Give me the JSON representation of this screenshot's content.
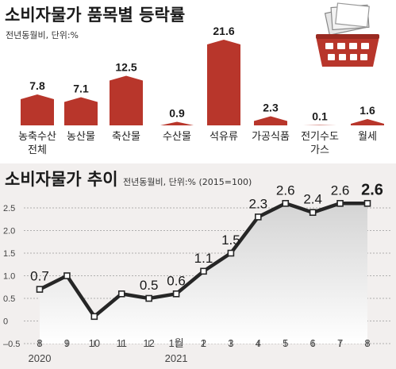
{
  "colors": {
    "bar": "#b8362b",
    "line": "#262626",
    "panel": "#f2efee",
    "area_top": "#d9d9d9",
    "grid": "#9a9a9a"
  },
  "icon": "shopping-basket-icon",
  "chart_data": [
    {
      "type": "bar",
      "title": "소비자물가 품목별 등락률",
      "subtitle": "전년동월비, 단위:%",
      "categories": [
        [
          "농축수산",
          "전체"
        ],
        [
          "농산물"
        ],
        [
          "축산물"
        ],
        [
          "수산물"
        ],
        [
          "석유류"
        ],
        [
          "가공식품"
        ],
        [
          "전기수도",
          "가스"
        ],
        [
          "월세"
        ]
      ],
      "values": [
        7.8,
        7.1,
        12.5,
        0.9,
        21.6,
        2.3,
        0.1,
        1.6
      ],
      "value_labels": [
        "7.8",
        "7.1",
        "12.5",
        "0.9",
        "21.6",
        "2.3",
        "0.1",
        "1.6"
      ]
    },
    {
      "type": "line",
      "title": "소비자물가 추이",
      "subtitle": "전년동월비, 단위:% (2015=100)",
      "x_ticks": [
        "8",
        "9",
        "10",
        "11",
        "12",
        "1월",
        "2",
        "3",
        "4",
        "5",
        "6",
        "7",
        "8"
      ],
      "years": [
        {
          "label": "2020",
          "index": 0
        },
        {
          "label": "2021",
          "index": 5
        }
      ],
      "values": [
        0.7,
        1.0,
        0.1,
        0.6,
        0.5,
        0.6,
        1.1,
        1.5,
        2.3,
        2.6,
        2.4,
        2.6,
        2.6
      ],
      "point_labels": [
        {
          "index": 0,
          "text": "0.7"
        },
        {
          "index": 4,
          "text": "0.5"
        },
        {
          "index": 5,
          "text": "0.6"
        },
        {
          "index": 6,
          "text": "1.1"
        },
        {
          "index": 7,
          "text": "1.5"
        },
        {
          "index": 8,
          "text": "2.3"
        },
        {
          "index": 9,
          "text": "2.6"
        },
        {
          "index": 10,
          "text": "2.4"
        },
        {
          "index": 11,
          "text": "2.6"
        },
        {
          "index": 12,
          "text": "2.6"
        }
      ],
      "yticks": [
        2.5,
        2.0,
        1.5,
        1.0,
        0.5,
        0,
        -0.5
      ],
      "ytick_labels": [
        "2.5",
        "2.0",
        "1.5",
        "1.0",
        "0.5",
        "0",
        "–0.5"
      ],
      "ylim": [
        -0.5,
        2.5
      ],
      "grid": true
    }
  ]
}
